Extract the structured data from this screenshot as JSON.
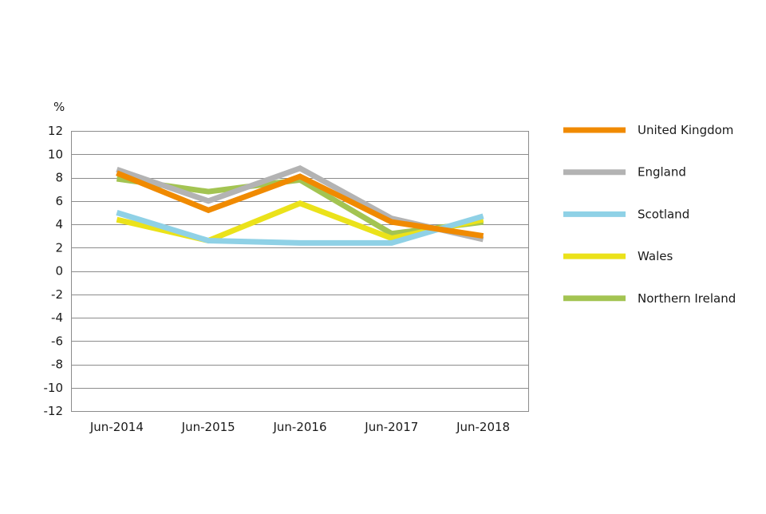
{
  "chart_data": {
    "type": "line",
    "title": "",
    "xlabel": "",
    "ylabel": "%",
    "categories": [
      "Jun-2014",
      "Jun-2015",
      "Jun-2016",
      "Jun-2017",
      "Jun-2018"
    ],
    "ylim": [
      -12,
      12
    ],
    "yticks": [
      "12",
      "10",
      "8",
      "6",
      "4",
      "2",
      "0",
      "-2",
      "-4",
      "-6",
      "-8",
      "-10",
      "-12"
    ],
    "grid": true,
    "legend_position": "right",
    "series": [
      {
        "name": "United Kingdom",
        "color": "#f08a00",
        "values": [
          8.4,
          5.2,
          8.1,
          4.2,
          3.0
        ]
      },
      {
        "name": "England",
        "color": "#b3b3b3",
        "values": [
          8.7,
          6.0,
          8.8,
          4.5,
          2.7
        ]
      },
      {
        "name": "Scotland",
        "color": "#8fd1e6",
        "values": [
          5.0,
          2.6,
          2.4,
          2.4,
          4.7
        ]
      },
      {
        "name": "Wales",
        "color": "#ebe21a",
        "values": [
          4.4,
          2.6,
          5.8,
          2.8,
          4.4
        ]
      },
      {
        "name": "Northern Ireland",
        "color": "#a3c452",
        "values": [
          7.9,
          6.8,
          7.8,
          3.2,
          4.2
        ]
      }
    ]
  }
}
